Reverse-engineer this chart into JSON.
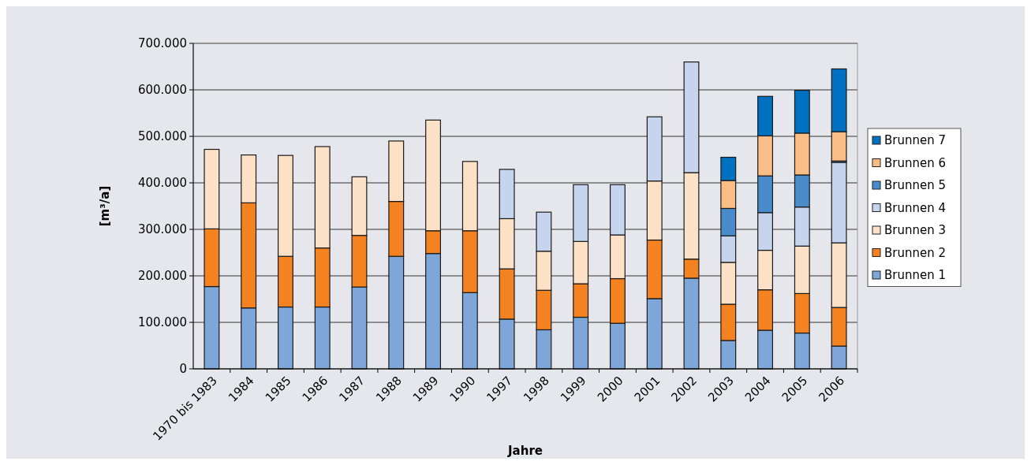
{
  "chart_data": {
    "type": "bar",
    "stacked": true,
    "xlabel": "Jahre",
    "ylabel": "[m³/a]",
    "categories": [
      "1970 bis 1983",
      "1984",
      "1985",
      "1986",
      "1987",
      "1988",
      "1989",
      "1990",
      "1997",
      "1998",
      "1999",
      "2000",
      "2001",
      "2002",
      "2003",
      "2004",
      "2005",
      "2006"
    ],
    "series": [
      {
        "name": "Brunnen 1",
        "color": "#7ea6d8",
        "values": [
          177000,
          131000,
          133000,
          133000,
          176000,
          242000,
          248000,
          164000,
          107000,
          84000,
          111000,
          98000,
          151000,
          195000,
          61000,
          83000,
          77000,
          49000
        ]
      },
      {
        "name": "Brunnen 2",
        "color": "#f58220",
        "values": [
          124000,
          226000,
          109000,
          127000,
          111000,
          118000,
          49000,
          133000,
          108000,
          85000,
          72000,
          96000,
          126000,
          41000,
          78000,
          87000,
          85000,
          83000
        ]
      },
      {
        "name": "Brunnen 3",
        "color": "#fde1c6",
        "values": [
          171000,
          103000,
          217000,
          218000,
          126000,
          130000,
          238000,
          149000,
          108000,
          84000,
          91000,
          94000,
          127000,
          186000,
          90000,
          85000,
          102000,
          139000
        ]
      },
      {
        "name": "Brunnen 4",
        "color": "#c6d4ee",
        "values": [
          null,
          null,
          null,
          null,
          null,
          null,
          null,
          null,
          106000,
          84000,
          122000,
          108000,
          138000,
          238000,
          57000,
          81000,
          84000,
          173000
        ]
      },
      {
        "name": "Brunnen 5",
        "color": "#4a8ccb",
        "values": [
          null,
          null,
          null,
          null,
          null,
          null,
          null,
          null,
          null,
          null,
          null,
          null,
          null,
          null,
          59000,
          79000,
          69000,
          3000
        ]
      },
      {
        "name": "Brunnen 6",
        "color": "#fbbd86",
        "values": [
          null,
          null,
          null,
          null,
          null,
          null,
          null,
          null,
          null,
          null,
          null,
          null,
          null,
          null,
          60000,
          86000,
          90000,
          63000
        ]
      },
      {
        "name": "Brunnen 7",
        "color": "#0070c0",
        "values": [
          null,
          null,
          null,
          null,
          null,
          null,
          null,
          null,
          null,
          null,
          null,
          null,
          null,
          null,
          50000,
          85000,
          92000,
          135000
        ]
      }
    ],
    "ylim": [
      0,
      700000
    ],
    "yticks": [
      {
        "value": 0,
        "label": "0"
      },
      {
        "value": 100000,
        "label": "100.000"
      },
      {
        "value": 200000,
        "label": "200.000"
      },
      {
        "value": 300000,
        "label": "300.000"
      },
      {
        "value": 400000,
        "label": "400.000"
      },
      {
        "value": 500000,
        "label": "500.000"
      },
      {
        "value": 600000,
        "label": "600.000"
      },
      {
        "value": 700000,
        "label": "700.000"
      }
    ],
    "grid": "y",
    "legend": "right"
  }
}
